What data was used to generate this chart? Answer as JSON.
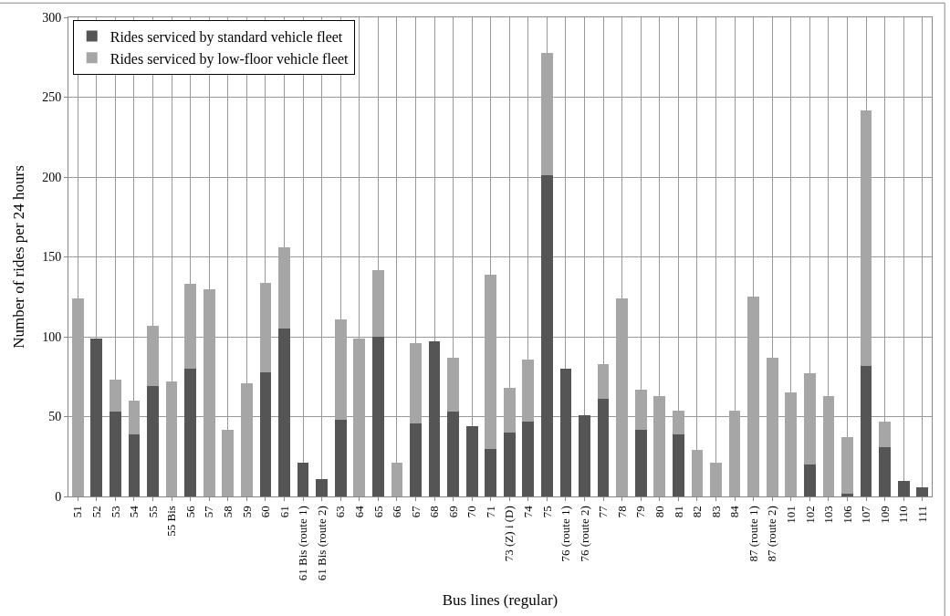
{
  "chart_data": {
    "type": "bar",
    "stacked": true,
    "xlabel": "Bus lines (regular)",
    "ylabel": "Number of rides per 24 hours",
    "categories": [
      "51",
      "52",
      "53",
      "54",
      "55",
      "55 Bis",
      "56",
      "57",
      "58",
      "59",
      "60",
      "61",
      "61 Bis (route 1)",
      "61 Bis (route 2)",
      "63",
      "64",
      "65",
      "66",
      "67",
      "68",
      "69",
      "70",
      "71",
      "73 (Z) i (D)",
      "74",
      "75",
      "76 (route 1)",
      "76 (route 2)",
      "77",
      "78",
      "79",
      "80",
      "81",
      "82",
      "83",
      "84",
      "87 (route 1)",
      "87 (route 2)",
      "101",
      "102",
      "103",
      "106",
      "107",
      "109",
      "110",
      "111"
    ],
    "series": [
      {
        "name": "Rides serviced by standard vehicle fleet",
        "color": "#555555",
        "values": [
          0,
          99,
          53,
          39,
          69,
          0,
          80,
          0,
          0,
          0,
          78,
          105,
          21,
          11,
          48,
          0,
          100,
          0,
          46,
          97,
          53,
          44,
          30,
          40,
          47,
          201,
          80,
          51,
          61,
          0,
          42,
          0,
          39,
          0,
          0,
          0,
          0,
          0,
          0,
          20,
          0,
          2,
          82,
          31,
          10,
          6
        ]
      },
      {
        "name": "Rides serviced by low-floor vehicle fleet",
        "color": "#a6a6a6",
        "values": [
          124,
          0,
          20,
          21,
          38,
          72,
          53,
          130,
          42,
          71,
          56,
          51,
          0,
          0,
          63,
          99,
          42,
          21,
          50,
          0,
          34,
          0,
          109,
          28,
          39,
          77,
          0,
          0,
          22,
          124,
          25,
          63,
          15,
          29,
          21,
          54,
          125,
          87,
          65,
          57,
          63,
          35,
          160,
          16,
          0,
          0
        ]
      }
    ],
    "ylim": [
      0,
      300
    ],
    "yticks": [
      0,
      50,
      100,
      150,
      200,
      250,
      300
    ],
    "grid": true,
    "legend": "top left"
  }
}
